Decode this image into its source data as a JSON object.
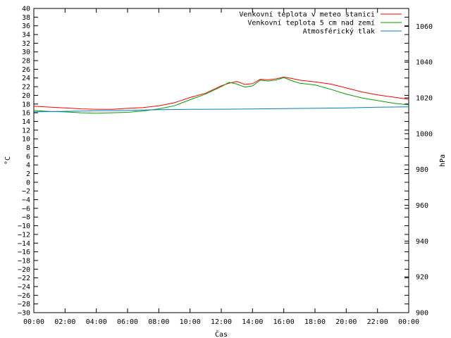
{
  "chart_data": {
    "type": "line",
    "xlabel": "Čas",
    "ylabel_left": "°C",
    "ylabel_right": "hPa",
    "x_ticks": [
      "00:00",
      "02:00",
      "04:00",
      "06:00",
      "08:00",
      "10:00",
      "12:00",
      "14:00",
      "16:00",
      "18:00",
      "20:00",
      "22:00",
      "00:00"
    ],
    "x_range_hours": [
      0,
      24
    ],
    "ylim_left": [
      -30,
      40
    ],
    "y_ticks_left": [
      40,
      38,
      36,
      34,
      32,
      30,
      28,
      26,
      24,
      22,
      20,
      18,
      16,
      14,
      12,
      10,
      8,
      6,
      4,
      2,
      0,
      -2,
      -4,
      -6,
      -8,
      -10,
      -12,
      -14,
      -16,
      -18,
      -20,
      -22,
      -24,
      -26,
      -28,
      -30
    ],
    "ylim_right": [
      900,
      1070
    ],
    "y_ticks_right": [
      1060,
      1040,
      1020,
      1000,
      980,
      960,
      940,
      920,
      900
    ],
    "grid": false,
    "legend_position": "top-right",
    "series": [
      {
        "name": "Venkovní teplota v meteo stanici",
        "axis": "left",
        "color": "#ff0000",
        "x": [
          0,
          1,
          2,
          3,
          4,
          5,
          6,
          7,
          8,
          9,
          10,
          11,
          12,
          12.5,
          13,
          13.5,
          14,
          14.5,
          15,
          15.5,
          16,
          16.5,
          17,
          18,
          19,
          20,
          21,
          22,
          23,
          24
        ],
        "values": [
          17.5,
          17.3,
          17.1,
          16.9,
          16.8,
          16.8,
          17.0,
          17.2,
          17.6,
          18.3,
          19.5,
          20.5,
          22.2,
          22.8,
          23.2,
          22.5,
          22.7,
          23.7,
          23.6,
          23.8,
          24.2,
          23.9,
          23.5,
          23.1,
          22.6,
          21.7,
          20.8,
          20.1,
          19.6,
          19.1
        ]
      },
      {
        "name": "Venkovní teplota 5 cm nad zemí",
        "axis": "left",
        "color": "#00a000",
        "x": [
          0,
          1,
          2,
          3,
          4,
          5,
          6,
          7,
          8,
          9,
          10,
          11,
          12,
          12.5,
          13,
          13.5,
          14,
          14.5,
          15,
          15.5,
          16,
          16.5,
          17,
          18,
          19,
          20,
          21,
          22,
          23,
          24
        ],
        "values": [
          16.5,
          16.3,
          16.2,
          16.0,
          15.9,
          16.0,
          16.1,
          16.4,
          16.9,
          17.6,
          19.0,
          20.3,
          22.0,
          23.0,
          22.6,
          21.9,
          22.2,
          23.5,
          23.3,
          23.5,
          24.1,
          23.4,
          22.8,
          22.4,
          21.4,
          20.3,
          19.4,
          18.8,
          18.2,
          17.8
        ]
      },
      {
        "name": "Atmosférický tlak",
        "axis": "right",
        "color": "#0080c0",
        "x": [
          0,
          2,
          4,
          6,
          8,
          10,
          12,
          14,
          16,
          18,
          20,
          22,
          24
        ],
        "values": [
          1012.2,
          1012.5,
          1012.8,
          1013.0,
          1013.4,
          1013.6,
          1013.7,
          1013.8,
          1014.0,
          1014.2,
          1014.4,
          1014.8,
          1015.0
        ]
      }
    ]
  }
}
